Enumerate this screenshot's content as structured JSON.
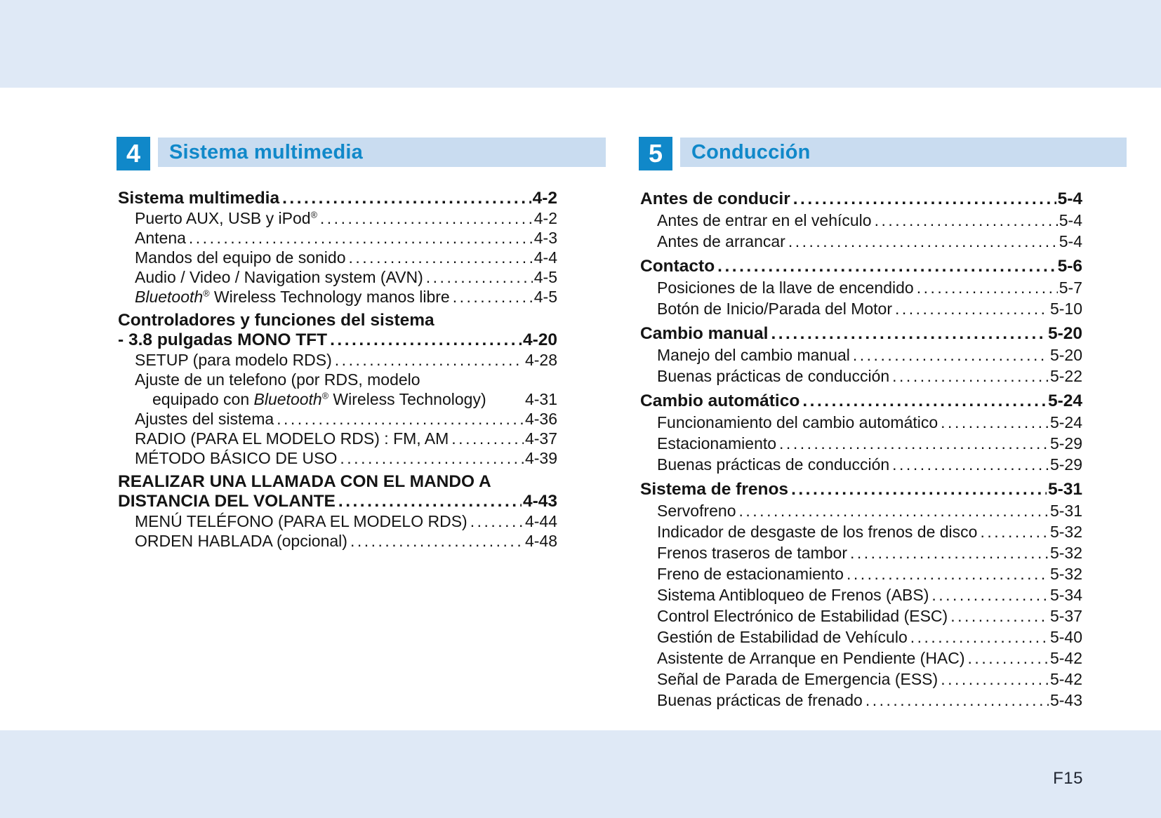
{
  "colors": {
    "accent": "#1088c9",
    "bar": "#c9dcf0",
    "band": "#dfe9f6",
    "ink": "#141414"
  },
  "footer": {
    "page_number": "F15"
  },
  "sections": [
    {
      "number": "4",
      "title": "Sistema multimedia",
      "entries": [
        {
          "parts": [
            {
              "t": "Sistema multimedia"
            }
          ],
          "page": "4-2",
          "bold": true,
          "level": 0,
          "dots": true
        },
        {
          "parts": [
            {
              "t": "Puerto AUX, USB y iPod"
            },
            {
              "t": "®",
              "style": "sup"
            }
          ],
          "page": "4-2",
          "level": 1,
          "dots": true
        },
        {
          "parts": [
            {
              "t": "Antena"
            }
          ],
          "page": "4-3",
          "level": 1,
          "dots": true
        },
        {
          "parts": [
            {
              "t": "Mandos del equipo de sonido"
            }
          ],
          "page": "4-4",
          "level": 1,
          "dots": true
        },
        {
          "parts": [
            {
              "t": "Audio / Video / Navigation system (AVN)"
            }
          ],
          "page": "4-5",
          "level": 1,
          "dots": true
        },
        {
          "parts": [
            {
              "t": "Bluetooth",
              "style": "italic"
            },
            {
              "t": "®",
              "style": "sup"
            },
            {
              "t": " Wireless Technology manos libre"
            }
          ],
          "page": "4-5",
          "level": 1,
          "dots": true
        },
        {
          "parts": [
            {
              "t": "Controladores y funciones del sistema"
            }
          ],
          "bold": true,
          "level": 0,
          "dots": false,
          "gap": true
        },
        {
          "parts": [
            {
              "t": "- 3.8 pulgadas MONO TFT"
            }
          ],
          "page": "4-20",
          "bold": true,
          "level": 0,
          "dots": true
        },
        {
          "parts": [
            {
              "t": "SETUP (para modelo RDS)"
            }
          ],
          "page": "4-28",
          "level": 1,
          "dots": true
        },
        {
          "parts": [
            {
              "t": "Ajuste de un telefono (por RDS, modelo"
            }
          ],
          "level": 1,
          "dots": false
        },
        {
          "parts": [
            {
              "t": "equipado con "
            },
            {
              "t": "Bluetooth",
              "style": "italic"
            },
            {
              "t": "®",
              "style": "sup"
            },
            {
              "t": " Wireless Technology)"
            }
          ],
          "page": "4-31",
          "level": 2,
          "dots": false
        },
        {
          "parts": [
            {
              "t": "Ajustes del sistema"
            }
          ],
          "page": "4-36",
          "level": 1,
          "dots": true
        },
        {
          "parts": [
            {
              "t": "RADIO (PARA EL MODELO RDS) : FM, AM"
            }
          ],
          "page": "4-37",
          "level": 1,
          "dots": true
        },
        {
          "parts": [
            {
              "t": "MÉTODO BÁSICO DE USO"
            }
          ],
          "page": "4-39",
          "level": 1,
          "dots": true
        },
        {
          "parts": [
            {
              "t": "REALIZAR UNA LLAMADA CON EL MANDO A"
            }
          ],
          "bold": true,
          "level": 0,
          "dots": false,
          "gap": true
        },
        {
          "parts": [
            {
              "t": "DISTANCIA DEL VOLANTE"
            }
          ],
          "page": "4-43",
          "bold": true,
          "level": 0,
          "dots": true
        },
        {
          "parts": [
            {
              "t": "MENÚ TELÉFONO (PARA EL MODELO RDS)"
            }
          ],
          "page": "4-44",
          "level": 1,
          "dots": true
        },
        {
          "parts": [
            {
              "t": "ORDEN HABLADA (opcional)"
            }
          ],
          "page": "4-48",
          "level": 1,
          "dots": true
        }
      ]
    },
    {
      "number": "5",
      "title": "Conducción",
      "entries": [
        {
          "parts": [
            {
              "t": "Antes de conducir"
            }
          ],
          "page": "5-4",
          "bold": true,
          "level": 0,
          "dots": true
        },
        {
          "parts": [
            {
              "t": "Antes de entrar en el vehículo"
            }
          ],
          "page": "5-4",
          "level": 1,
          "dots": true
        },
        {
          "parts": [
            {
              "t": "Antes de arrancar"
            }
          ],
          "page": "5-4",
          "level": 1,
          "dots": true
        },
        {
          "parts": [
            {
              "t": "Contacto"
            }
          ],
          "page": "5-6",
          "bold": true,
          "level": 0,
          "dots": true,
          "gap": true
        },
        {
          "parts": [
            {
              "t": "Posiciones de la llave de encendido"
            }
          ],
          "page": "5-7",
          "level": 1,
          "dots": true
        },
        {
          "parts": [
            {
              "t": "Botón de Inicio/Parada del Motor"
            }
          ],
          "page": "5-10",
          "level": 1,
          "dots": true
        },
        {
          "parts": [
            {
              "t": "Cambio manual"
            }
          ],
          "page": "5-20",
          "bold": true,
          "level": 0,
          "dots": true,
          "gap": true
        },
        {
          "parts": [
            {
              "t": "Manejo del cambio manual"
            }
          ],
          "page": "5-20",
          "level": 1,
          "dots": true
        },
        {
          "parts": [
            {
              "t": "Buenas prácticas de conducción"
            }
          ],
          "page": "5-22",
          "level": 1,
          "dots": true
        },
        {
          "parts": [
            {
              "t": "Cambio automático"
            }
          ],
          "page": "5-24",
          "bold": true,
          "level": 0,
          "dots": true,
          "gap": true
        },
        {
          "parts": [
            {
              "t": "Funcionamiento del cambio automático"
            }
          ],
          "page": "5-24",
          "level": 1,
          "dots": true
        },
        {
          "parts": [
            {
              "t": "Estacionamiento"
            }
          ],
          "page": "5-29",
          "level": 1,
          "dots": true
        },
        {
          "parts": [
            {
              "t": "Buenas prácticas de conducción"
            }
          ],
          "page": "5-29",
          "level": 1,
          "dots": true
        },
        {
          "parts": [
            {
              "t": "Sistema de frenos"
            }
          ],
          "page": "5-31",
          "bold": true,
          "level": 0,
          "dots": true,
          "gap": true
        },
        {
          "parts": [
            {
              "t": "Servofreno"
            }
          ],
          "page": "5-31",
          "level": 1,
          "dots": true
        },
        {
          "parts": [
            {
              "t": "Indicador de desgaste de los frenos de disco"
            }
          ],
          "page": "5-32",
          "level": 1,
          "dots": true
        },
        {
          "parts": [
            {
              "t": "Frenos traseros de tambor"
            }
          ],
          "page": "5-32",
          "level": 1,
          "dots": true
        },
        {
          "parts": [
            {
              "t": "Freno de estacionamiento"
            }
          ],
          "page": "5-32",
          "level": 1,
          "dots": true
        },
        {
          "parts": [
            {
              "t": "Sistema Antibloqueo de Frenos (ABS)"
            }
          ],
          "page": "5-34",
          "level": 1,
          "dots": true
        },
        {
          "parts": [
            {
              "t": "Control Electrónico de Estabilidad (ESC)"
            }
          ],
          "page": "5-37",
          "level": 1,
          "dots": true
        },
        {
          "parts": [
            {
              "t": "Gestión de Estabilidad de Vehículo"
            }
          ],
          "page": "5-40",
          "level": 1,
          "dots": true
        },
        {
          "parts": [
            {
              "t": "Asistente de Arranque en Pendiente (HAC)"
            }
          ],
          "page": "5-42",
          "level": 1,
          "dots": true
        },
        {
          "parts": [
            {
              "t": "Señal de Parada de Emergencia (ESS)"
            }
          ],
          "page": "5-42",
          "level": 1,
          "dots": true
        },
        {
          "parts": [
            {
              "t": "Buenas prácticas de frenado"
            }
          ],
          "page": "5-43",
          "level": 1,
          "dots": true
        }
      ]
    }
  ]
}
